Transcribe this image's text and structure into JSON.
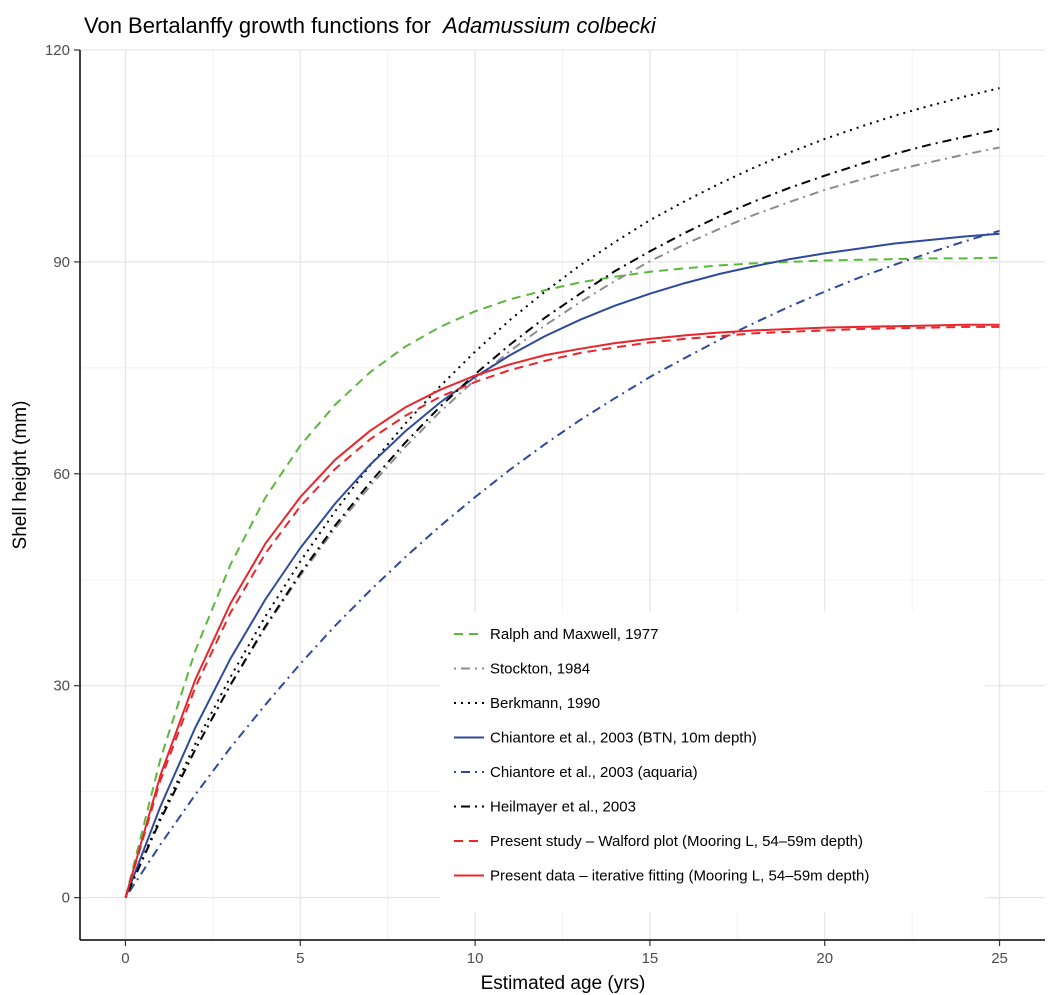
{
  "chart_data": {
    "type": "line",
    "title": "Von Bertalanffy growth functions for",
    "title_species": "Adamussium colbecki",
    "xlabel": "Estimated age (yrs)",
    "ylabel": "Shell height (mm)",
    "xlim": [
      -1.3,
      26.3
    ],
    "ylim": [
      -6,
      120
    ],
    "x_ticks": [
      0,
      5,
      10,
      15,
      20,
      25
    ],
    "y_ticks": [
      0,
      30,
      60,
      90,
      120
    ],
    "grid": true,
    "legend_position": "bottom-right inside",
    "x": [
      0,
      1,
      2,
      3,
      4,
      5,
      6,
      7,
      8,
      9,
      10,
      11,
      12,
      13,
      14,
      15,
      16,
      17,
      18,
      19,
      20,
      21,
      22,
      23,
      24,
      25
    ],
    "series": [
      {
        "name": "Ralph and Maxwell, 1977",
        "color": "#5cb83b",
        "dash": "dashed",
        "values": [
          0,
          19.6,
          35.0,
          47.1,
          56.6,
          64.0,
          69.8,
          74.4,
          78.0,
          80.8,
          83.0,
          84.7,
          86.0,
          87.1,
          87.9,
          88.6,
          89.1,
          89.5,
          89.8,
          90.0,
          90.2,
          90.3,
          90.4,
          90.5,
          90.5,
          90.6
        ]
      },
      {
        "name": "Stockton, 1984",
        "color": "#8c8c8c",
        "dash": "dashdot",
        "values": [
          0,
          11.0,
          21.0,
          30.0,
          38.2,
          45.6,
          52.3,
          58.3,
          63.8,
          68.8,
          73.3,
          77.4,
          81.0,
          84.3,
          87.3,
          90.1,
          92.5,
          94.7,
          96.7,
          98.5,
          100.2,
          101.6,
          103.0,
          104.1,
          105.2,
          106.2
        ]
      },
      {
        "name": "Berkmann, 1990",
        "color": "#000000",
        "dash": "dotted",
        "values": [
          0,
          11.4,
          21.8,
          31.2,
          39.8,
          47.6,
          54.7,
          61.2,
          67.1,
          72.4,
          77.3,
          81.8,
          85.8,
          89.5,
          92.8,
          95.9,
          98.6,
          101.1,
          103.4,
          105.5,
          107.4,
          109.1,
          110.7,
          112.1,
          113.4,
          114.6
        ]
      },
      {
        "name": "Chiantore et al., 2003 (BTN, 10m depth)",
        "color": "#2e4a9e",
        "dash": "solid",
        "values": [
          0,
          12.9,
          24.1,
          33.8,
          42.2,
          49.5,
          55.8,
          61.3,
          66.0,
          70.1,
          73.7,
          76.8,
          79.5,
          81.8,
          83.8,
          85.5,
          87.0,
          88.3,
          89.4,
          90.4,
          91.2,
          91.9,
          92.6,
          93.1,
          93.6,
          94.0
        ]
      },
      {
        "name": "Chiantore et al., 2003 (aquaria)",
        "color": "#2e4a9e",
        "dash": "dashdot",
        "values": [
          0,
          7.5,
          14.6,
          21.2,
          27.3,
          33.1,
          38.5,
          43.5,
          48.2,
          52.6,
          56.7,
          60.6,
          64.2,
          67.6,
          70.7,
          73.7,
          76.4,
          79.0,
          81.4,
          83.7,
          85.8,
          87.8,
          89.6,
          91.3,
          92.9,
          94.4
        ]
      },
      {
        "name": "Heilmayer et al., 2003",
        "color": "#000000",
        "dash": "dashdot",
        "values": [
          0,
          11.0,
          21.0,
          30.1,
          38.4,
          45.9,
          52.7,
          58.8,
          64.4,
          69.5,
          74.1,
          78.3,
          82.1,
          85.5,
          88.7,
          91.5,
          94.1,
          96.5,
          98.6,
          100.5,
          102.2,
          103.8,
          105.3,
          106.6,
          107.7,
          108.8
        ]
      },
      {
        "name": "Present study – Walford plot (Mooring L, 54–59m depth)",
        "color": "#e8262b",
        "dash": "dashed",
        "values": [
          0,
          16.6,
          29.8,
          40.3,
          48.7,
          55.4,
          60.7,
          64.9,
          68.2,
          70.9,
          73.0,
          74.7,
          76.0,
          77.1,
          77.9,
          78.6,
          79.1,
          79.5,
          79.9,
          80.1,
          80.3,
          80.5,
          80.6,
          80.7,
          80.8,
          80.8
        ]
      },
      {
        "name": "Present data – iterative fitting (Mooring L, 54–59m depth)",
        "color": "#e8262b",
        "dash": "solid",
        "values": [
          0,
          17.3,
          30.9,
          41.6,
          50.1,
          56.7,
          62.0,
          66.1,
          69.4,
          71.9,
          73.9,
          75.5,
          76.8,
          77.7,
          78.5,
          79.1,
          79.6,
          80.0,
          80.3,
          80.5,
          80.7,
          80.8,
          80.9,
          81.0,
          81.1,
          81.1
        ]
      }
    ]
  }
}
